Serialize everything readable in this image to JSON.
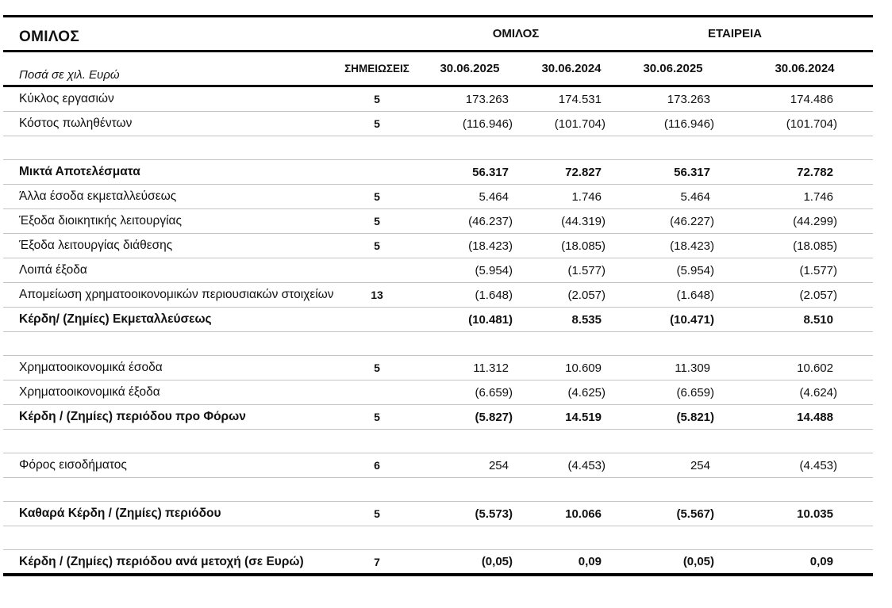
{
  "header": {
    "title": "ΟΜΙΛΟΣ",
    "amounts_note": "Ποσά σε χιλ. Ευρώ"
  },
  "table": {
    "group_headers": [
      "ΟΜΙΛΟΣ",
      "ΕΤΑΙΡΕΙΑ"
    ],
    "notes_header": "ΣΗΜΕΙΩΣΕΙΣ",
    "date_headers": [
      "30.06.2025",
      "30.06.2024",
      "30.06.2025",
      "30.06.2024"
    ],
    "rows": [
      {
        "label": "Κύκλος εργασιών",
        "note": "5",
        "bold": false,
        "values": [
          "173.263",
          "174.531",
          "173.263",
          "174.486"
        ]
      },
      {
        "label": "Κόστος πωληθέντων",
        "note": "5",
        "bold": false,
        "values": [
          "(116.946)",
          "(101.704)",
          "(116.946)",
          "(101.704)"
        ]
      },
      {
        "spacer": true
      },
      {
        "label": "Μικτά Αποτελέσματα",
        "note": "",
        "bold": true,
        "values": [
          "56.317",
          "72.827",
          "56.317",
          "72.782"
        ]
      },
      {
        "label": "Άλλα έσοδα εκμεταλλεύσεως",
        "note": "5",
        "bold": false,
        "values": [
          "5.464",
          "1.746",
          "5.464",
          "1.746"
        ]
      },
      {
        "label": "Έξοδα διοικητικής λειτουργίας",
        "note": "5",
        "bold": false,
        "values": [
          "(46.237)",
          "(44.319)",
          "(46.227)",
          "(44.299)"
        ]
      },
      {
        "label": "Έξοδα λειτουργίας διάθεσης",
        "note": "5",
        "bold": false,
        "values": [
          "(18.423)",
          "(18.085)",
          "(18.423)",
          "(18.085)"
        ]
      },
      {
        "label": "Λοιπά έξοδα",
        "note": "",
        "bold": false,
        "values": [
          "(5.954)",
          "(1.577)",
          "(5.954)",
          "(1.577)"
        ]
      },
      {
        "label": "Απομείωση χρηματοοικονομικών περιουσιακών στοιχείων",
        "note": "13",
        "bold": false,
        "values": [
          "(1.648)",
          "(2.057)",
          "(1.648)",
          "(2.057)"
        ]
      },
      {
        "label": "Κέρδη/ (Ζημίες) Εκμεταλλεύσεως",
        "note": "",
        "bold": true,
        "values": [
          "(10.481)",
          "8.535",
          "(10.471)",
          "8.510"
        ]
      },
      {
        "spacer": true
      },
      {
        "label": "Χρηματοοικονομικά έσοδα",
        "note": "5",
        "bold": false,
        "values": [
          "11.312",
          "10.609",
          "11.309",
          "10.602"
        ]
      },
      {
        "label": "Χρηματοοικονομικά έξοδα",
        "note": "",
        "bold": false,
        "values": [
          "(6.659)",
          "(4.625)",
          "(6.659)",
          "(4.624)"
        ]
      },
      {
        "label": "Κέρδη / (Ζημίες) περιόδου προ Φόρων",
        "note": "5",
        "bold": true,
        "values": [
          "(5.827)",
          "14.519",
          "(5.821)",
          "14.488"
        ]
      },
      {
        "spacer": true
      },
      {
        "label": "Φόρος εισοδήματος",
        "note": "6",
        "bold": false,
        "values": [
          "254",
          "(4.453)",
          "254",
          "(4.453)"
        ]
      },
      {
        "spacer": true
      },
      {
        "label": "Καθαρά Κέρδη / (Ζημίες) περιόδου",
        "note": "5",
        "bold": true,
        "values": [
          "(5.573)",
          "10.066",
          "(5.567)",
          "10.035"
        ]
      },
      {
        "spacer": true
      },
      {
        "label": "Κέρδη / (Ζημίες) περιόδου ανά μετοχή (σε Ευρώ)",
        "note": "7",
        "bold": true,
        "values": [
          "(0,05)",
          "0,09",
          "(0,05)",
          "0,09"
        ]
      }
    ]
  },
  "colors": {
    "text": "#111111",
    "thick_rule": "#000000",
    "thin_rule": "#c4c4c4",
    "background": "#ffffff"
  }
}
